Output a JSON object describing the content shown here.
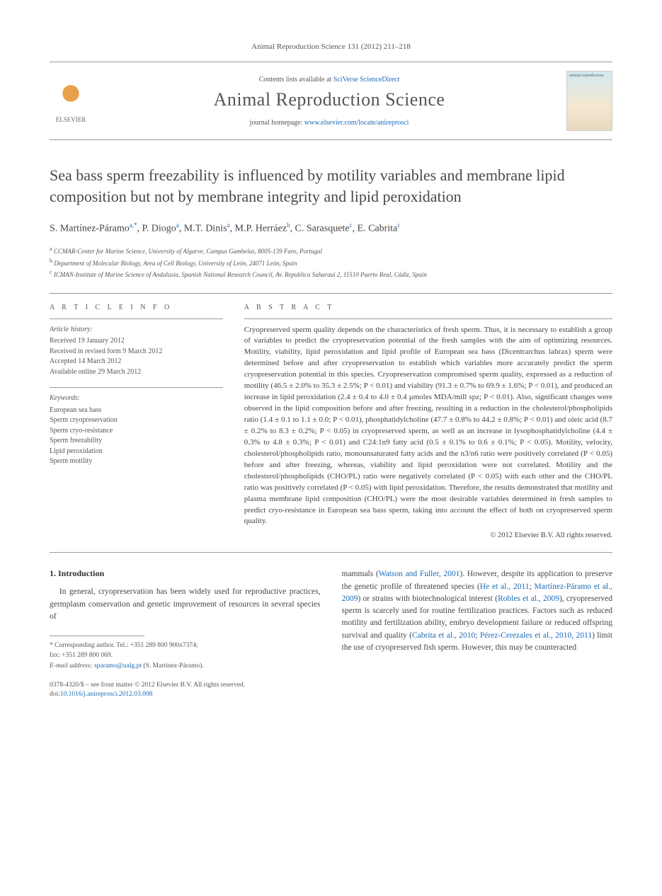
{
  "citation": "Animal Reproduction Science 131 (2012) 211–218",
  "masthead": {
    "contents_prefix": "Contents lists available at ",
    "contents_link": "SciVerse ScienceDirect",
    "journal": "Animal Reproduction Science",
    "homepage_prefix": "journal homepage: ",
    "homepage_link": "www.elsevier.com/locate/anireprosci",
    "elsevier": "ELSEVIER",
    "cover_label": "animal reproduction"
  },
  "title": "Sea bass sperm freezability is influenced by motility variables and membrane lipid composition but not by membrane integrity and lipid peroxidation",
  "authors_html": "S. Martínez-Páramo",
  "authors": [
    {
      "name": "S. Martínez-Páramo",
      "aff": "a,*"
    },
    {
      "name": "P. Diogo",
      "aff": "a"
    },
    {
      "name": "M.T. Dinis",
      "aff": "a"
    },
    {
      "name": "M.P. Herráez",
      "aff": "b"
    },
    {
      "name": "C. Sarasquete",
      "aff": "c"
    },
    {
      "name": "E. Cabrita",
      "aff": "c"
    }
  ],
  "affiliations": [
    {
      "sup": "a",
      "text": "CCMAR-Center for Marine Science, University of Algarve, Campus Gambelas, 8005-139 Faro, Portugal"
    },
    {
      "sup": "b",
      "text": "Department of Molecular Biology, Area of Cell Biology, University of León, 24071 León, Spain"
    },
    {
      "sup": "c",
      "text": "ICMAN-Institute of Marine Science of Andalusia, Spanish National Research Council, Av. Republica Saharaui 2, 11510 Puerto Real, Cádiz, Spain"
    }
  ],
  "info_label": "A R T I C L E   I N F O",
  "abstract_label": "A B S T R A C T",
  "history": {
    "heading": "Article history:",
    "lines": [
      "Received 19 January 2012",
      "Received in revised form 9 March 2012",
      "Accepted 14 March 2012",
      "Available online 29 March 2012"
    ]
  },
  "keywords": {
    "heading": "Keywords:",
    "items": [
      "European sea bass",
      "Sperm cryopreservation",
      "Sperm cryo-resistance",
      "Sperm freezability",
      "Lipid peroxidation",
      "Sperm motility"
    ]
  },
  "abstract": "Cryopreserved sperm quality depends on the characteristics of fresh sperm. Thus, it is necessary to establish a group of variables to predict the cryopreservation potential of the fresh samples with the aim of optimizing resources. Motility, viability, lipid peroxidation and lipid profile of European sea bass (Dicentrarchus labrax) sperm were determined before and after cryopreservation to establish which variables more accurately predict the sperm cryopreservation potential in this species. Cryopreservation compromised sperm quality, expressed as a reduction of motility (46.5 ± 2.0% to 35.3 ± 2.5%; P < 0.01) and viability (91.3 ± 0.7% to 69.9 ± 1.6%; P < 0.01), and produced an increase in lipid peroxidation (2.4 ± 0.4 to 4.0 ± 0.4 μmoles MDA/mill spz; P < 0.01). Also, significant changes were observed in the lipid composition before and after freezing, resulting in a reduction in the cholesterol/phospholipids ratio (1.4 ± 0.1 to 1.1 ± 0.0; P < 0.01), phosphatidylcholine (47.7 ± 0.8% to 44.2 ± 0.8%; P < 0.01) and oleic acid (8.7 ± 0.2% to 8.3 ± 0.2%; P < 0.05) in cryopreserved sperm, as well as an increase in lysophosphatidylcholine (4.4 ± 0.3% to 4.8 ± 0.3%; P < 0.01) and C24:1n9 fatty acid (0.5 ± 0.1% to 0.6 ± 0.1%; P < 0.05). Motility, velocity, cholesterol/phospholipids ratio, monounsaturated fatty acids and the n3/n6 ratio were positively correlated (P < 0.05) before and after freezing, whereas, viability and lipid peroxidation were not correlated. Motility and the cholesterol/phospholipids (CHO/PL) ratio were negatively correlated (P < 0.05) with each other and the CHO/PL ratio was positively correlated (P < 0.05) with lipid peroxidation. Therefore, the results demonstrated that motility and plasma membrane lipid composition (CHO/PL) were the most desirable variables determined in fresh samples to predict cryo-resistance in European sea bass sperm, taking into account the effect of both on cryopreserved sperm quality.",
  "copyright": "© 2012 Elsevier B.V. All rights reserved.",
  "intro_heading": "1.  Introduction",
  "intro_left": "In general, cryopreservation has been widely used for reproductive practices, germplasm conservation and genetic improvement of resources in several species of",
  "intro_right_1": "mammals (",
  "intro_right_link1": "Watson and Fuller, 2001",
  "intro_right_2": "). However, despite its application to preserve the genetic profile of threatened species (",
  "intro_right_link2": "He et al., 2011",
  "intro_right_3": "; ",
  "intro_right_link3": "Martínez-Páramo et al., 2009",
  "intro_right_4": ") or strains with biotechnological interest (",
  "intro_right_link4": "Robles et al., 2009",
  "intro_right_5": "), cryopreserved sperm is scarcely used for routine fertilization practices. Factors such as reduced motility and fertilization ability, embryo development failure or reduced offspring survival and quality (",
  "intro_right_link5": "Cabrita et al., 2010",
  "intro_right_6": "; ",
  "intro_right_link6": "Pérez-Cerezales et al., 2010, 2011",
  "intro_right_7": ") limit the use of cryopreserved fish sperm. However, this may be counteracted",
  "footnote": {
    "corresp_label": "* Corresponding author. Tel.: +351 289 800 900x7374;",
    "fax": "fax: +351 289 800 069.",
    "email_label": "E-mail address: ",
    "email": "sparamo@ualg.pt",
    "email_suffix": " (S. Martínez-Páramo)."
  },
  "footer": {
    "line1": "0378-4320/$ – see front matter © 2012 Elsevier B.V. All rights reserved.",
    "doi_label": "doi:",
    "doi": "10.1016/j.anireprosci.2012.03.008"
  },
  "colors": {
    "link": "#1a6bb8",
    "text": "#444444",
    "muted": "#555555",
    "rule": "#999999"
  }
}
